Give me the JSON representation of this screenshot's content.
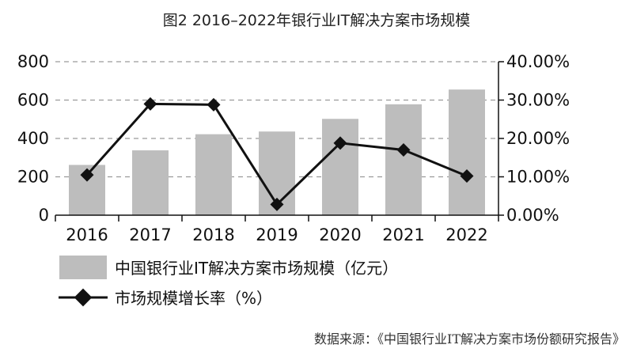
{
  "chart_data": {
    "type": "bar",
    "title": "图2  2016–2022年银行业IT解决方案市场规模",
    "categories": [
      "2016",
      "2017",
      "2018",
      "2019",
      "2020",
      "2021",
      "2022"
    ],
    "series": [
      {
        "name": "中国银行业IT解决方案市场规模（亿元）",
        "type": "bar",
        "axis": "left",
        "color": "#bdbdbd",
        "values": [
          262,
          338,
          422,
          436,
          502,
          578,
          655
        ]
      },
      {
        "name": "市场规模增长率（%）",
        "type": "line",
        "axis": "right",
        "color": "#111111",
        "marker": "diamond",
        "values": [
          10.5,
          29.0,
          28.8,
          2.8,
          18.8,
          17.0,
          10.2
        ]
      }
    ],
    "y_left": {
      "ylim": [
        0,
        800
      ],
      "ticks": [
        "0",
        "200",
        "400",
        "600",
        "800"
      ]
    },
    "y_right": {
      "ylim": [
        0,
        40
      ],
      "ticks": [
        "0.00%",
        "10.00%",
        "20.00%",
        "30.00%",
        "40.00%"
      ]
    },
    "grid": "horizontal dashed",
    "legend_position": "bottom-left",
    "source": "数据来源：《中国银行业IT解决方案市场份额研究报告》"
  }
}
